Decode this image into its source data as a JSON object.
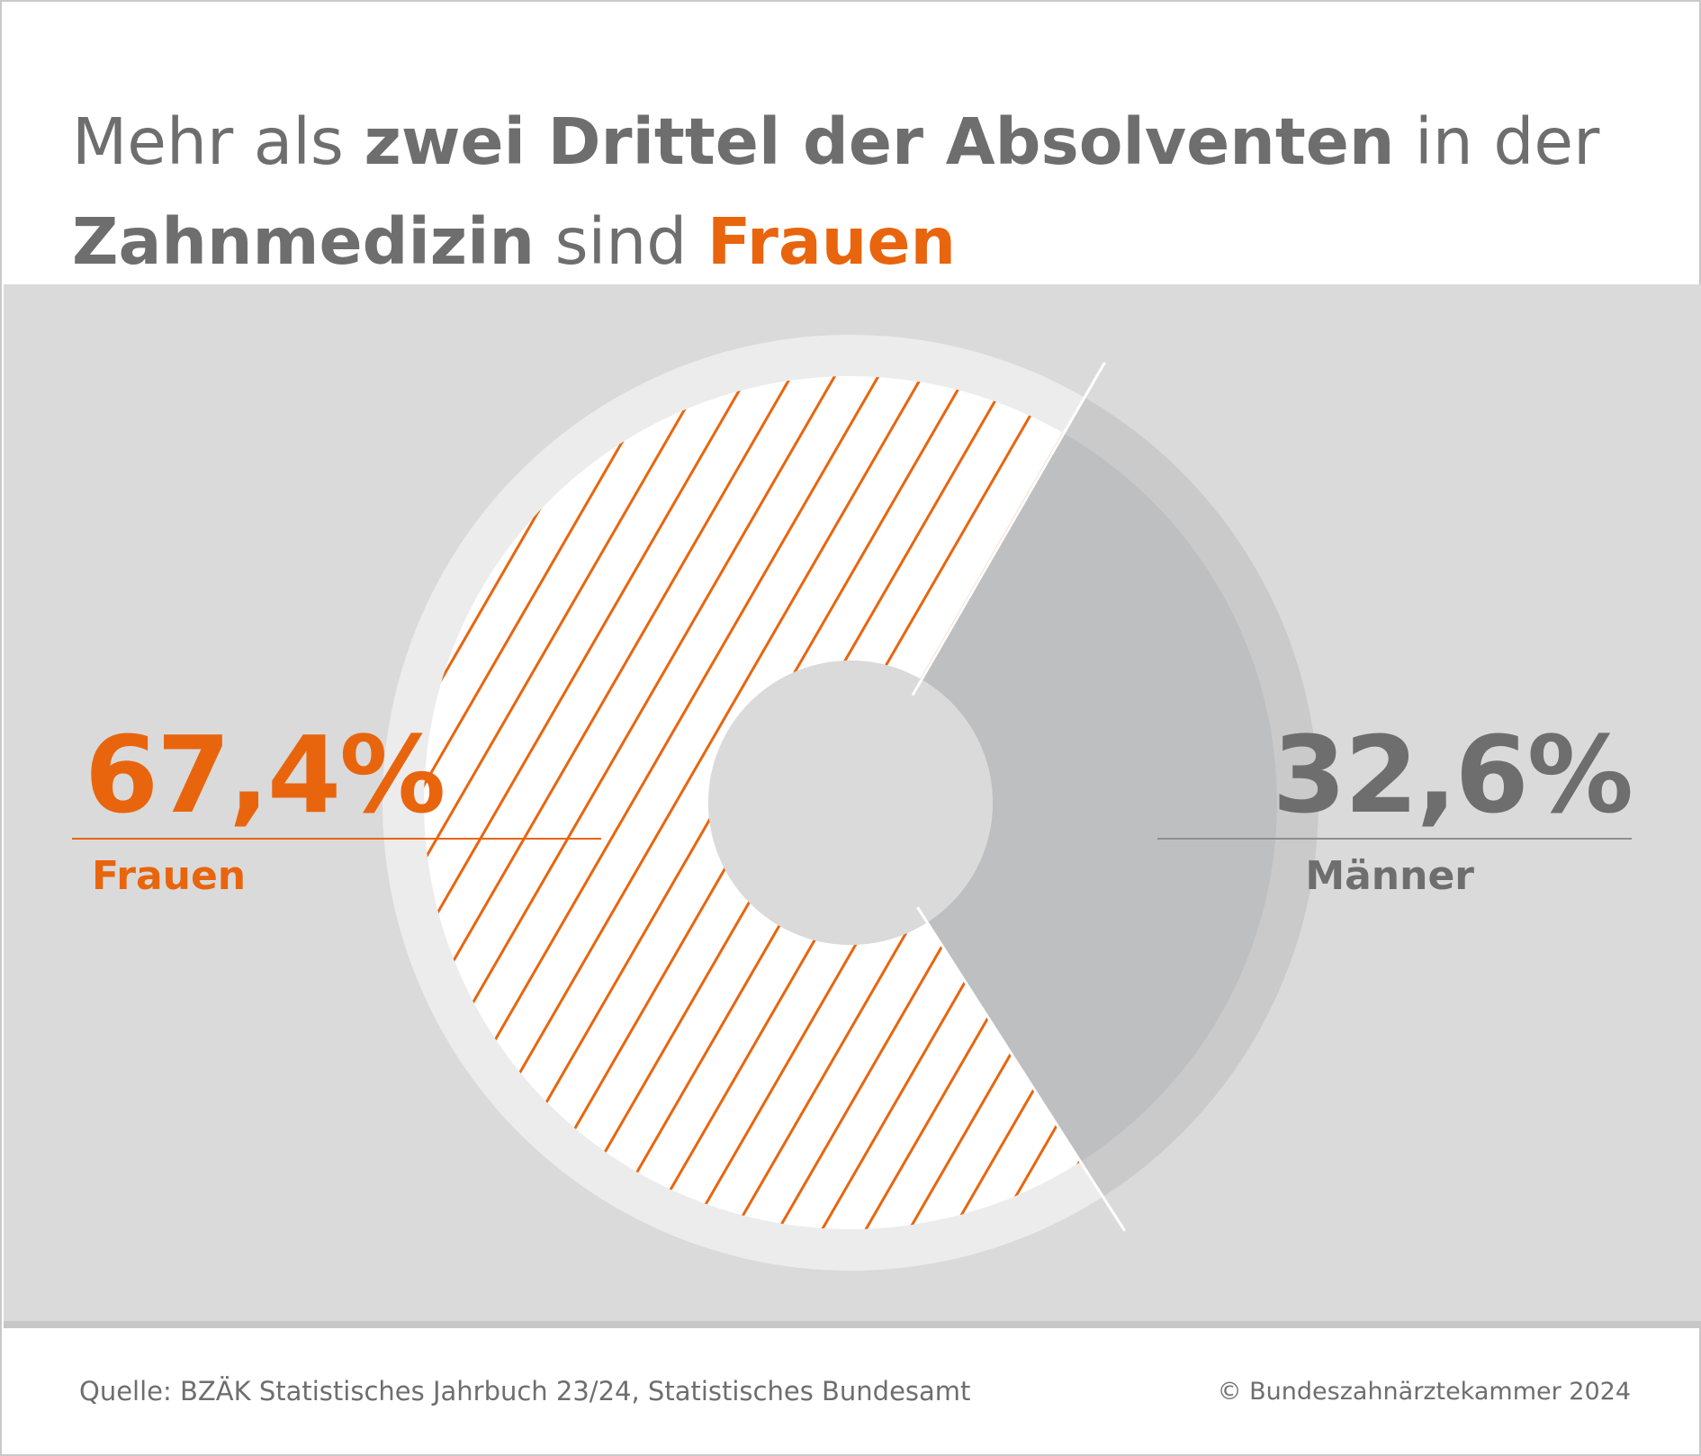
{
  "header": {
    "title_part1": "Mehr als ",
    "title_part2": "zwei Drittel der Absolventen",
    "title_part3": " in der",
    "title_part4": "Zahnmedizin",
    "title_part5": " sind ",
    "title_part6": "Frauen"
  },
  "chart_data": {
    "type": "pie",
    "title": "Mehr als zwei Drittel der Absolventen in der Zahnmedizin sind Frauen",
    "unit": "%",
    "slices": [
      {
        "name": "Frauen",
        "label": "67,4%",
        "value": 67.4,
        "color": "#e8650e"
      },
      {
        "name": "Männer",
        "label": "32,6%",
        "value": 32.6,
        "color": "#bebfc0"
      }
    ]
  },
  "colors": {
    "accent": "#e8650e",
    "text_grey": "#6e6e6e",
    "panel_bg": "#dadada",
    "men_slice": "#bebfc0",
    "outer_ring": "#ececec"
  },
  "footer": {
    "source": "Quelle: BZÄK Statistisches Jahrbuch 23/24, Statistisches Bundesamt",
    "copyright": "© Bundeszahnärztekammer 2024"
  }
}
